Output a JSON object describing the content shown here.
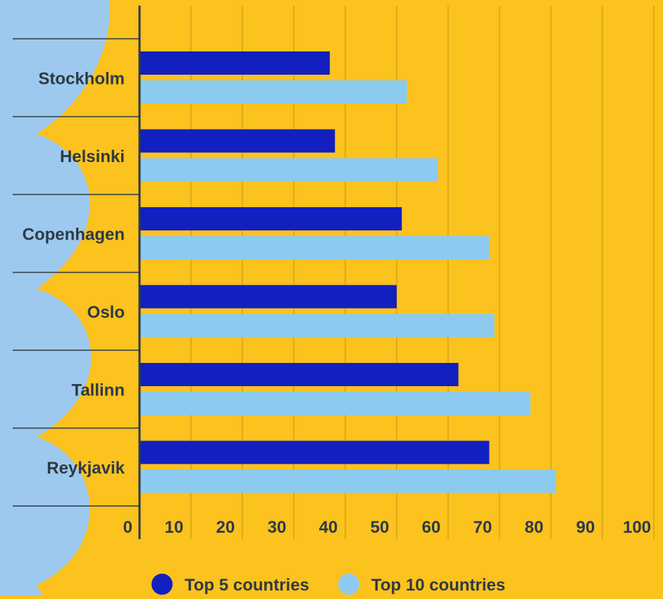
{
  "colors": {
    "background": "#FCC21E",
    "panel": "#9DC9EE",
    "series_top5": "#1220C0",
    "series_top10": "#8CCBEF",
    "text": "#2D3A45",
    "grid": "#C99D12",
    "axis": "#2D3A45"
  },
  "chart_data": {
    "type": "bar",
    "orientation": "horizontal",
    "categories": [
      "Stockholm",
      "Helsinki",
      "Copenhagen",
      "Oslo",
      "Tallinn",
      "Reykjavik"
    ],
    "series": [
      {
        "name": "Top 5 countries",
        "values": [
          37,
          38,
          51,
          50,
          62,
          68
        ]
      },
      {
        "name": "Top 10 countries",
        "values": [
          52,
          58,
          68,
          69,
          76,
          81
        ]
      }
    ],
    "xlim": [
      0,
      100
    ],
    "xticks": [
      "0",
      "10",
      "20",
      "30",
      "40",
      "50",
      "60",
      "70",
      "80",
      "90",
      "100"
    ],
    "grid": true,
    "legend": "bottom"
  }
}
